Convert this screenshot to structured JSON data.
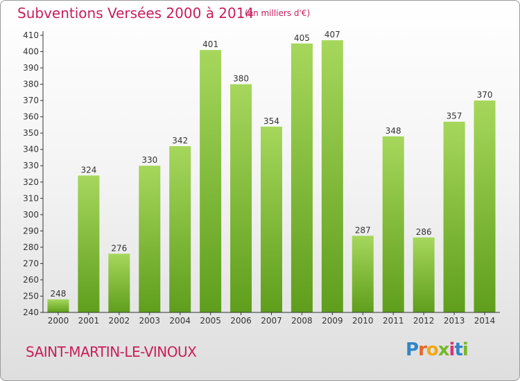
{
  "chart_data": {
    "type": "bar",
    "title": "Subventions Versées 2000 à 2014",
    "subtitle": "(en milliers d'€)",
    "categories": [
      "2000",
      "2001",
      "2002",
      "2003",
      "2004",
      "2005",
      "2006",
      "2007",
      "2008",
      "2009",
      "2010",
      "2011",
      "2012",
      "2013",
      "2014"
    ],
    "values": [
      248,
      324,
      276,
      330,
      342,
      401,
      380,
      354,
      405,
      407,
      287,
      348,
      286,
      357,
      370
    ],
    "ylim": [
      240,
      410
    ],
    "yticks": [
      240,
      250,
      260,
      270,
      280,
      290,
      300,
      310,
      320,
      330,
      340,
      350,
      360,
      370,
      380,
      390,
      400,
      410
    ],
    "grid": false,
    "bar_color": "#7ab830"
  },
  "footer": {
    "commune": "SAINT-MARTIN-LE-VINOUX",
    "logo": {
      "letters": [
        "P",
        "r",
        "o",
        "x",
        "i",
        "t",
        "i"
      ],
      "colors": [
        "#2f86c8",
        "#e8662a",
        "#f0a818",
        "#76b82a",
        "#e0307a",
        "#2f86c8",
        "#76b82a"
      ]
    }
  }
}
